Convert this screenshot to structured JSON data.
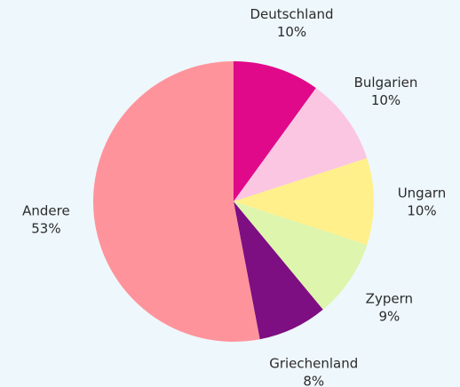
{
  "chart_data": {
    "type": "pie",
    "categories": [
      "Deutschland",
      "Bulgarien",
      "Ungarn",
      "Zypern",
      "Griechenland",
      "Andere"
    ],
    "values": [
      10,
      10,
      10,
      9,
      8,
      53
    ],
    "value_labels": [
      "10%",
      "10%",
      "10%",
      "9%",
      "8%",
      "53%"
    ],
    "colors": [
      "#e0098a",
      "#fbc6e2",
      "#fff08c",
      "#def5ad",
      "#7d0f82",
      "#ff939b"
    ]
  }
}
